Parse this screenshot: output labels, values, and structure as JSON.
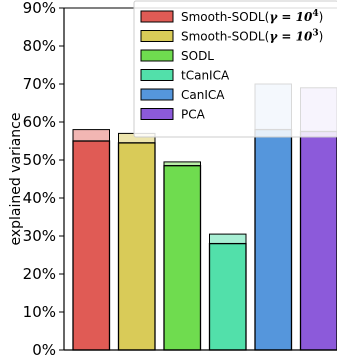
{
  "chart_data": {
    "type": "bar",
    "ylabel": "explained variance",
    "ylim": [
      0,
      90
    ],
    "yticks": [
      0,
      10,
      20,
      30,
      40,
      50,
      60,
      70,
      80,
      90
    ],
    "ytick_labels": [
      "0%",
      "10%",
      "20%",
      "30%",
      "40%",
      "50%",
      "60%",
      "70%",
      "80%",
      "90%"
    ],
    "legend_position": "top-right",
    "series": [
      {
        "name": "Smooth-SODL(γ = 10⁴)",
        "name_prefix": "Smooth-SODL(",
        "name_math": "γ = 10",
        "name_exp": "4",
        "name_suffix": ")",
        "value": 55,
        "upper": 58,
        "color": "#e05b55",
        "light_color": "#f2b6b3"
      },
      {
        "name": "Smooth-SODL(γ = 10³)",
        "name_prefix": "Smooth-SODL(",
        "name_math": "γ = 10",
        "name_exp": "3",
        "name_suffix": ")",
        "value": 54.5,
        "upper": 57,
        "color": "#d9cb58",
        "light_color": "#ede5ad"
      },
      {
        "name": "SODL",
        "value": 48.5,
        "upper": 49.5,
        "color": "#6fdc4f",
        "light_color": "#b9eda8"
      },
      {
        "name": "tCanICA",
        "value": 28,
        "upper": 30.5,
        "color": "#52e0aa",
        "light_color": "#a8efd4"
      },
      {
        "name": "CanICA",
        "value": 58,
        "upper": 70,
        "color": "#5596dc",
        "light_color": "#b4d0ee"
      },
      {
        "name": "PCA",
        "value": 57.5,
        "upper": 69,
        "color": "#8c5ada",
        "light_color": "#cbb5ee"
      }
    ]
  }
}
